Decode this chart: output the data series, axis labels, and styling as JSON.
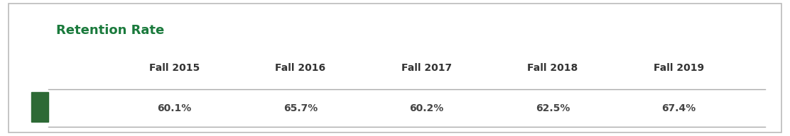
{
  "title": "Retention Rate",
  "title_color": "#1a7a3c",
  "title_fontsize": 13,
  "columns": [
    "Fall 2015",
    "Fall 2016",
    "Fall 2017",
    "Fall 2018",
    "Fall 2019"
  ],
  "values": [
    "60.1%",
    "65.7%",
    "60.2%",
    "62.5%",
    "67.4%"
  ],
  "legend_color": "#2d6a35",
  "header_fontsize": 10,
  "value_fontsize": 10,
  "background_color": "#ffffff",
  "outer_border_color": "#bbbbbb",
  "line_color": "#aaaaaa",
  "header_text_color": "#333333",
  "value_text_color": "#444444"
}
